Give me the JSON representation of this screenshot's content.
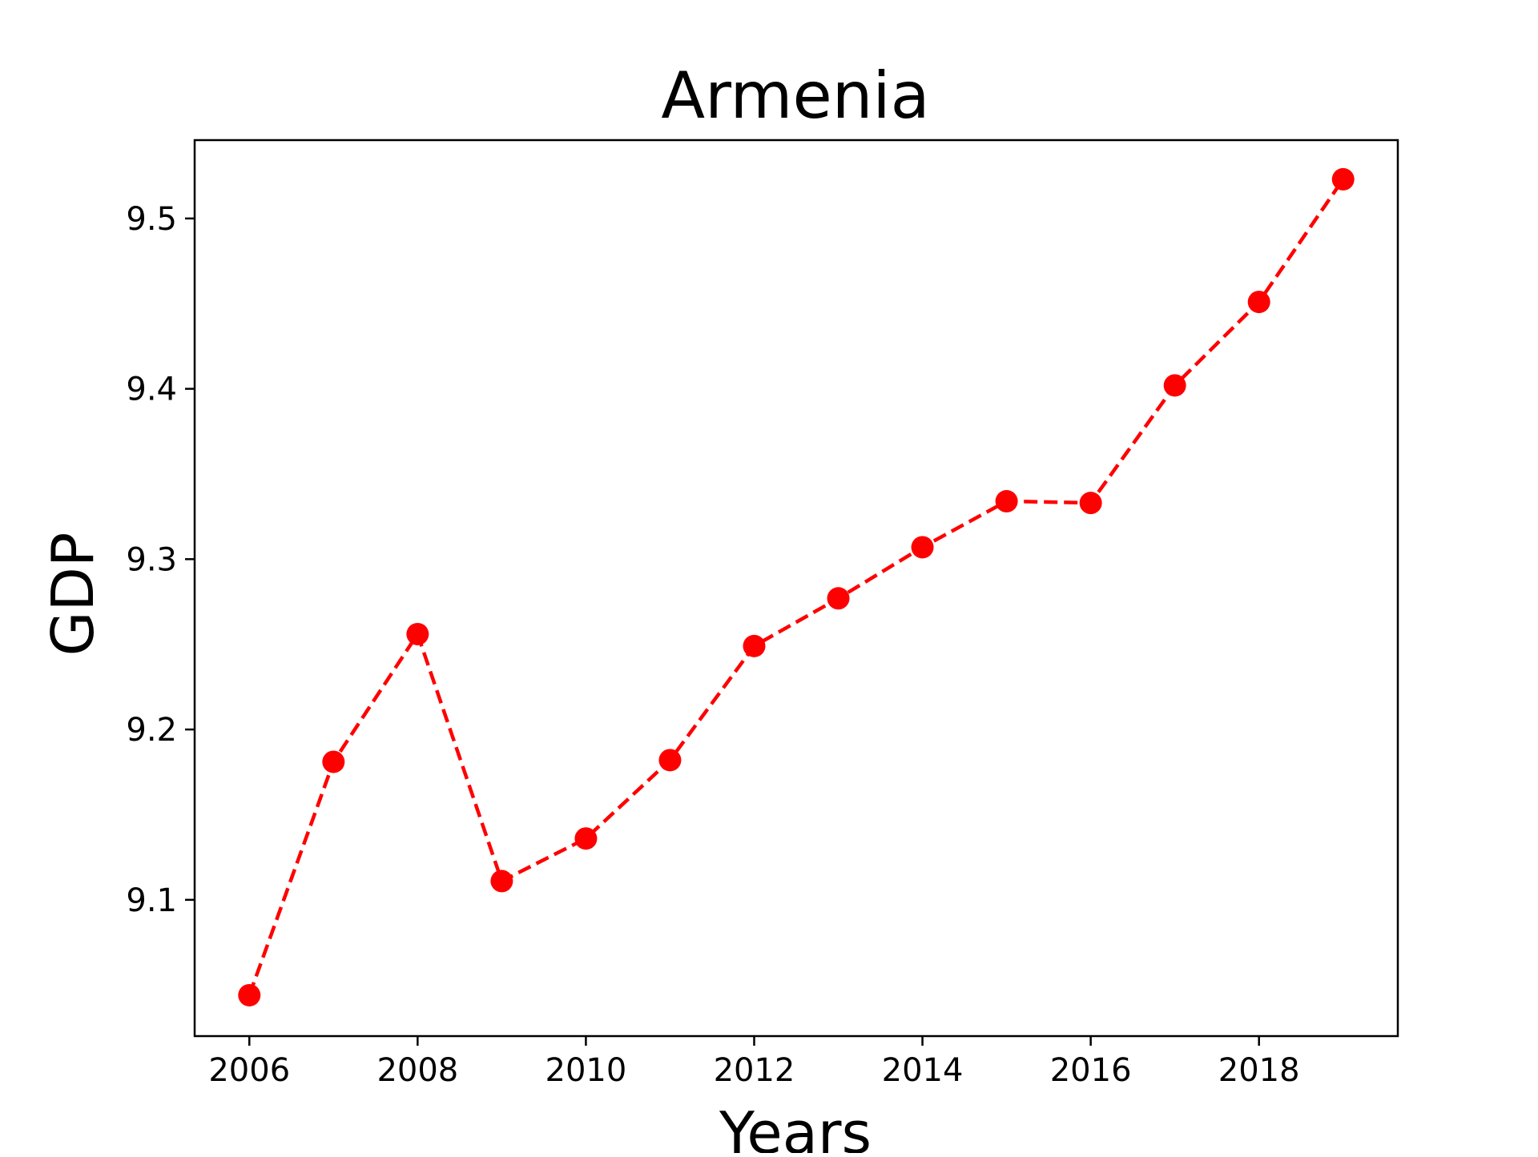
{
  "chart_data": {
    "type": "line",
    "title": "Armenia",
    "xlabel": "Years",
    "ylabel": "GDP",
    "x": [
      2006,
      2007,
      2008,
      2009,
      2010,
      2011,
      2012,
      2013,
      2014,
      2015,
      2016,
      2017,
      2018,
      2019
    ],
    "series": [
      {
        "values": [
          9.044,
          9.181,
          9.256,
          9.111,
          9.136,
          9.182,
          9.249,
          9.277,
          9.307,
          9.334,
          9.333,
          9.402,
          9.451,
          9.523
        ],
        "color": "#ff0000",
        "line_style": "dashed",
        "marker": "circle"
      }
    ],
    "xlim": [
      2005.35,
      2019.65
    ],
    "ylim": [
      9.02,
      9.546
    ],
    "x_ticks": [
      "2006",
      "2008",
      "2010",
      "2012",
      "2014",
      "2016",
      "2018"
    ],
    "y_ticks": [
      "9.1",
      "9.2",
      "9.3",
      "9.4",
      "9.5"
    ],
    "grid": false,
    "legend": "none"
  }
}
